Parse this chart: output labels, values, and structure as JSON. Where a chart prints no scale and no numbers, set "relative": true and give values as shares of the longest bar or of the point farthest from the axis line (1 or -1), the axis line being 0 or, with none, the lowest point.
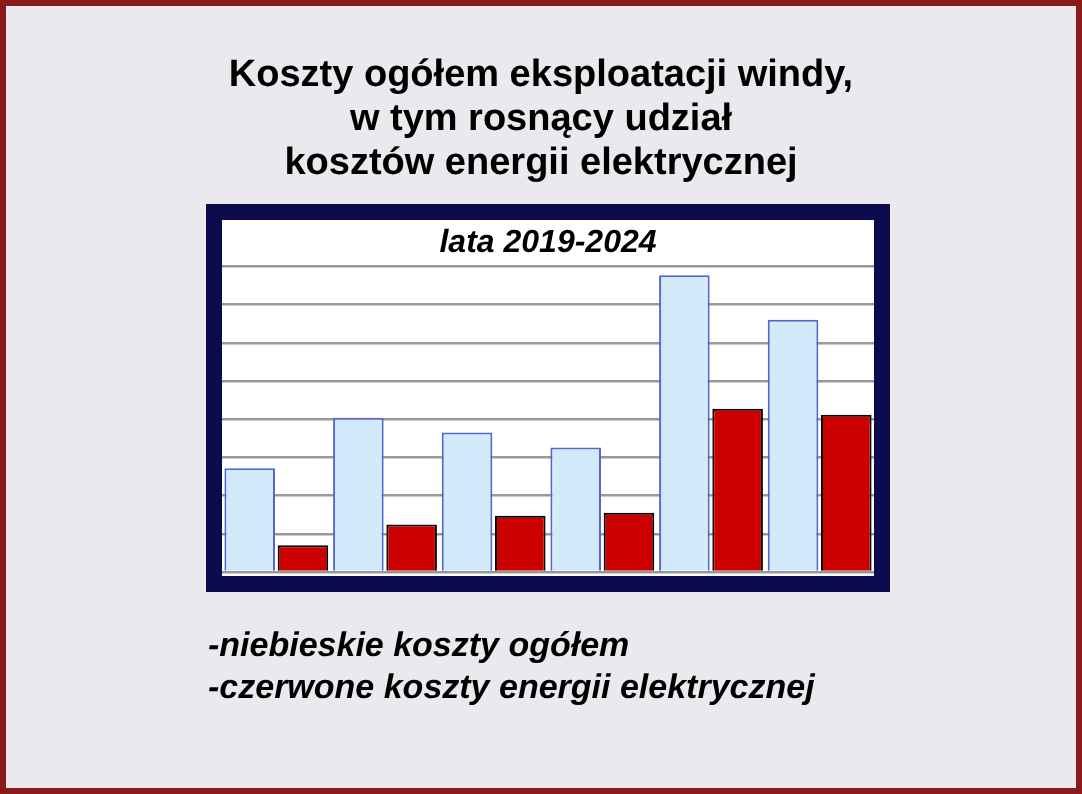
{
  "chart_data": {
    "type": "bar",
    "title": "Koszty ogółem eksploatacji windy,\nw tym rosnący udział\nkosztów energii elektrycznej",
    "subtitle": "lata 2019-2024",
    "relative": true,
    "grid": "y",
    "legend": false,
    "categories": [
      null,
      null,
      null,
      null,
      null,
      null
    ],
    "series": [
      {
        "color": "#d2eafa",
        "values": [
          0.35,
          0.52,
          0.47,
          0.42,
          1,
          0.85
        ]
      },
      {
        "color": "#cc0000",
        "values": [
          0.09,
          0.16,
          0.19,
          0.2,
          0.55,
          0.53
        ]
      }
    ],
    "annotations": [
      "-niebieskie koszty ogółem",
      "-czerwone koszty energii elektrycznej"
    ]
  }
}
